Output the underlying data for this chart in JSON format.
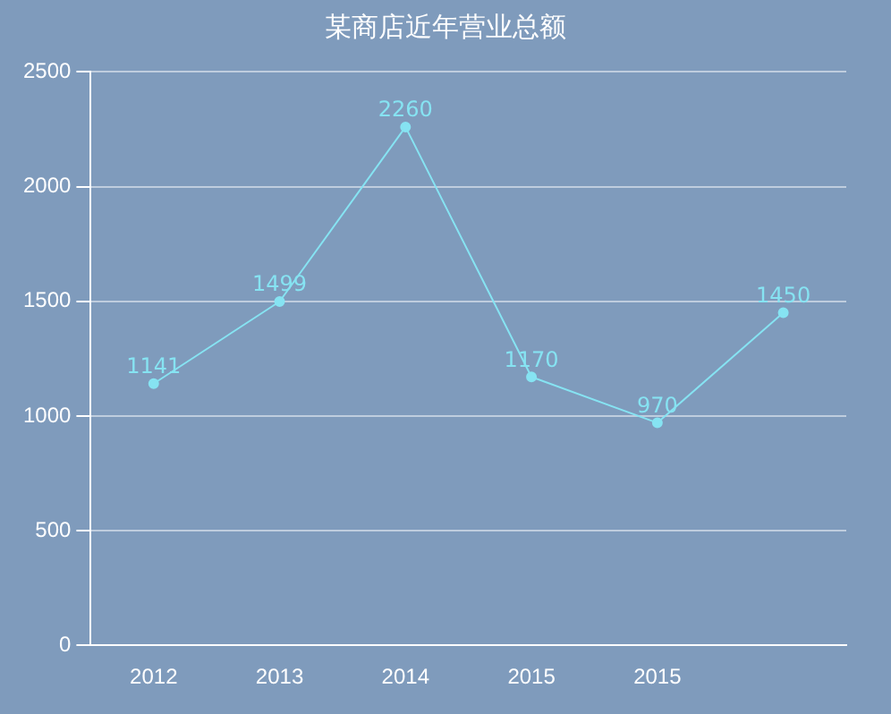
{
  "chart_data": {
    "type": "line",
    "title": "某商店近年营业总额",
    "categories": [
      "2012",
      "2013",
      "2014",
      "2015",
      "2015",
      null
    ],
    "series": [
      {
        "color": "#86e3f2",
        "values": [
          1141,
          1499,
          2260,
          1170,
          970,
          1450
        ]
      }
    ],
    "ylim": [
      0,
      2500
    ],
    "yticks": [
      0,
      500,
      1000,
      1500,
      2000,
      2500
    ],
    "grid": "y",
    "marker": "circle",
    "data_labels": true,
    "legend": false
  }
}
